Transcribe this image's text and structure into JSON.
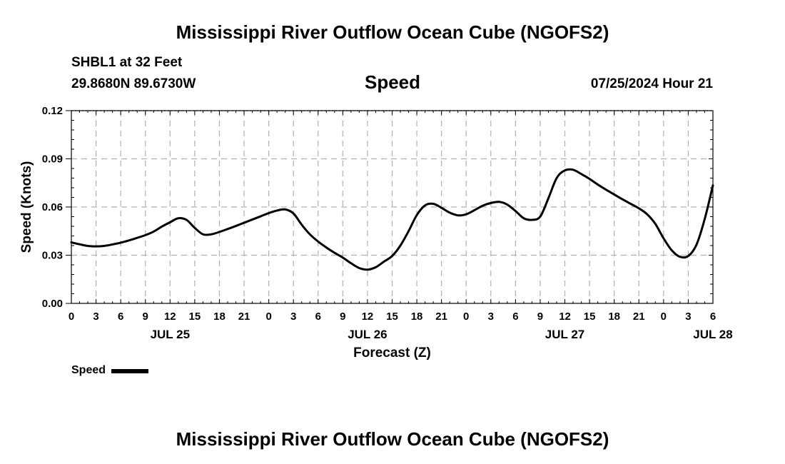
{
  "header": {
    "title": "Mississippi River Outflow Ocean Cube (NGOFS2)",
    "station": "SHBL1 at 32 Feet",
    "coordinates": "29.8680N  89.6730W",
    "chart_title": "Speed",
    "datetime": "07/25/2024 Hour 21"
  },
  "footer": {
    "title": "Mississippi River Outflow Ocean Cube (NGOFS2)"
  },
  "legend": {
    "label": "Speed"
  },
  "colors": {
    "line": "#000000",
    "grid": "#b0b0b0",
    "axis": "#000000"
  },
  "chart_data": {
    "type": "line",
    "title": "Speed",
    "xlabel": "Forecast (Z)",
    "ylabel": "Speed (Knots)",
    "x_unit": "hours since JUL 25 00Z",
    "xlim": [
      0,
      78
    ],
    "ylim": [
      0,
      0.12
    ],
    "grid": true,
    "yticks": [
      {
        "value": 0.0,
        "label": "0.00"
      },
      {
        "value": 0.03,
        "label": "0.03"
      },
      {
        "value": 0.06,
        "label": "0.06"
      },
      {
        "value": 0.09,
        "label": "0.09"
      },
      {
        "value": 0.12,
        "label": "0.12"
      }
    ],
    "xticks": [
      {
        "value": 0,
        "label": "0"
      },
      {
        "value": 3,
        "label": "3"
      },
      {
        "value": 6,
        "label": "6"
      },
      {
        "value": 9,
        "label": "9"
      },
      {
        "value": 12,
        "label": "12"
      },
      {
        "value": 15,
        "label": "15"
      },
      {
        "value": 18,
        "label": "18"
      },
      {
        "value": 21,
        "label": "21"
      },
      {
        "value": 24,
        "label": "0"
      },
      {
        "value": 27,
        "label": "3"
      },
      {
        "value": 30,
        "label": "6"
      },
      {
        "value": 33,
        "label": "9"
      },
      {
        "value": 36,
        "label": "12"
      },
      {
        "value": 39,
        "label": "15"
      },
      {
        "value": 42,
        "label": "18"
      },
      {
        "value": 45,
        "label": "21"
      },
      {
        "value": 48,
        "label": "0"
      },
      {
        "value": 51,
        "label": "3"
      },
      {
        "value": 54,
        "label": "6"
      },
      {
        "value": 57,
        "label": "9"
      },
      {
        "value": 60,
        "label": "12"
      },
      {
        "value": 63,
        "label": "15"
      },
      {
        "value": 66,
        "label": "18"
      },
      {
        "value": 69,
        "label": "21"
      },
      {
        "value": 72,
        "label": "0"
      },
      {
        "value": 75,
        "label": "3"
      },
      {
        "value": 78,
        "label": "6"
      }
    ],
    "date_labels": [
      {
        "value": 12,
        "label": "JUL 25"
      },
      {
        "value": 36,
        "label": "JUL 26"
      },
      {
        "value": 60,
        "label": "JUL 27"
      },
      {
        "value": 78,
        "label": "JUL 28"
      }
    ],
    "series": [
      {
        "name": "Speed",
        "points": [
          [
            0,
            0.038
          ],
          [
            1,
            0.0368
          ],
          [
            2,
            0.0358
          ],
          [
            3,
            0.0355
          ],
          [
            4,
            0.0358
          ],
          [
            5,
            0.0367
          ],
          [
            6,
            0.0378
          ],
          [
            7,
            0.0392
          ],
          [
            8,
            0.0408
          ],
          [
            9,
            0.0425
          ],
          [
            10,
            0.0447
          ],
          [
            11,
            0.0478
          ],
          [
            12,
            0.0505
          ],
          [
            13,
            0.053
          ],
          [
            14,
            0.052
          ],
          [
            15,
            0.047
          ],
          [
            16,
            0.043
          ],
          [
            17,
            0.043
          ],
          [
            18,
            0.0445
          ],
          [
            19,
            0.0463
          ],
          [
            20,
            0.0482
          ],
          [
            21,
            0.0502
          ],
          [
            22,
            0.0522
          ],
          [
            23,
            0.0542
          ],
          [
            24,
            0.0562
          ],
          [
            25,
            0.0578
          ],
          [
            26,
            0.0585
          ],
          [
            27,
            0.056
          ],
          [
            28,
            0.049
          ],
          [
            29,
            0.043
          ],
          [
            30,
            0.0385
          ],
          [
            31,
            0.0348
          ],
          [
            32,
            0.0315
          ],
          [
            33,
            0.0285
          ],
          [
            34,
            0.025
          ],
          [
            35,
            0.022
          ],
          [
            36,
            0.021
          ],
          [
            37,
            0.0225
          ],
          [
            38,
            0.026
          ],
          [
            39,
            0.0295
          ],
          [
            40,
            0.036
          ],
          [
            41,
            0.045
          ],
          [
            42,
            0.055
          ],
          [
            43,
            0.061
          ],
          [
            44,
            0.062
          ],
          [
            45,
            0.0595
          ],
          [
            46,
            0.0565
          ],
          [
            47,
            0.0548
          ],
          [
            48,
            0.0555
          ],
          [
            49,
            0.058
          ],
          [
            50,
            0.0608
          ],
          [
            51,
            0.0625
          ],
          [
            52,
            0.0632
          ],
          [
            53,
            0.0615
          ],
          [
            54,
            0.0575
          ],
          [
            55,
            0.053
          ],
          [
            56,
            0.052
          ],
          [
            57,
            0.054
          ],
          [
            58,
            0.0655
          ],
          [
            59,
            0.078
          ],
          [
            60,
            0.0828
          ],
          [
            61,
            0.0832
          ],
          [
            62,
            0.0805
          ],
          [
            63,
            0.0775
          ],
          [
            64,
            0.074
          ],
          [
            65,
            0.0708
          ],
          [
            66,
            0.0678
          ],
          [
            67,
            0.0648
          ],
          [
            68,
            0.062
          ],
          [
            69,
            0.0592
          ],
          [
            70,
            0.0555
          ],
          [
            71,
            0.0495
          ],
          [
            72,
            0.0405
          ],
          [
            73,
            0.033
          ],
          [
            74,
            0.029
          ],
          [
            75,
            0.0295
          ],
          [
            76,
            0.0365
          ],
          [
            77,
            0.0525
          ],
          [
            78,
            0.0735
          ]
        ]
      }
    ]
  }
}
